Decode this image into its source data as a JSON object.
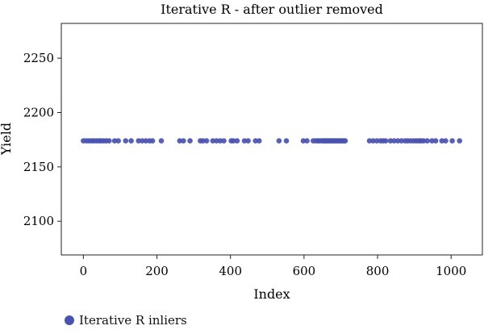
{
  "chart_data": {
    "type": "scatter",
    "title": "Iterative R - after outlier removed",
    "xlabel": "Index",
    "ylabel": "Yield",
    "xlim": [
      -60,
      1085
    ],
    "ylim": [
      2069,
      2282
    ],
    "x_ticks": [
      0,
      200,
      400,
      600,
      800,
      1000
    ],
    "y_ticks": [
      2100,
      2150,
      2200,
      2250
    ],
    "grid": false,
    "legend_position": "bottom-left",
    "series": [
      {
        "name": "Iterative R inliers",
        "color": "#4a52b0",
        "x": [
          0,
          8,
          15,
          22,
          28,
          35,
          42,
          48,
          55,
          62,
          70,
          85,
          95,
          115,
          130,
          150,
          160,
          170,
          180,
          188,
          212,
          262,
          272,
          290,
          318,
          325,
          335,
          352,
          362,
          372,
          382,
          402,
          408,
          418,
          438,
          448,
          468,
          478,
          532,
          552,
          598,
          608,
          625,
          632,
          638,
          642,
          648,
          652,
          656,
          660,
          664,
          668,
          672,
          676,
          680,
          684,
          688,
          692,
          696,
          700,
          704,
          708,
          712,
          778,
          788,
          798,
          808,
          815,
          822,
          835,
          845,
          855,
          865,
          875,
          882,
          890,
          898,
          905,
          912,
          918,
          925,
          935,
          948,
          958,
          975,
          985,
          1003,
          1023
        ],
        "y": [
          2174,
          2174,
          2174,
          2174,
          2174,
          2174,
          2174,
          2174,
          2174,
          2174,
          2174,
          2174,
          2174,
          2174,
          2174,
          2174,
          2174,
          2174,
          2174,
          2174,
          2174,
          2174,
          2174,
          2174,
          2174,
          2174,
          2174,
          2174,
          2174,
          2174,
          2174,
          2174,
          2174,
          2174,
          2174,
          2174,
          2174,
          2174,
          2174,
          2174,
          2174,
          2174,
          2174,
          2174,
          2174,
          2174,
          2174,
          2174,
          2174,
          2174,
          2174,
          2174,
          2174,
          2174,
          2174,
          2174,
          2174,
          2174,
          2174,
          2174,
          2174,
          2174,
          2174,
          2174,
          2174,
          2174,
          2174,
          2174,
          2174,
          2174,
          2174,
          2174,
          2174,
          2174,
          2174,
          2174,
          2174,
          2174,
          2174,
          2174,
          2174,
          2174,
          2174,
          2174,
          2174,
          2174,
          2174,
          2174
        ]
      }
    ]
  }
}
